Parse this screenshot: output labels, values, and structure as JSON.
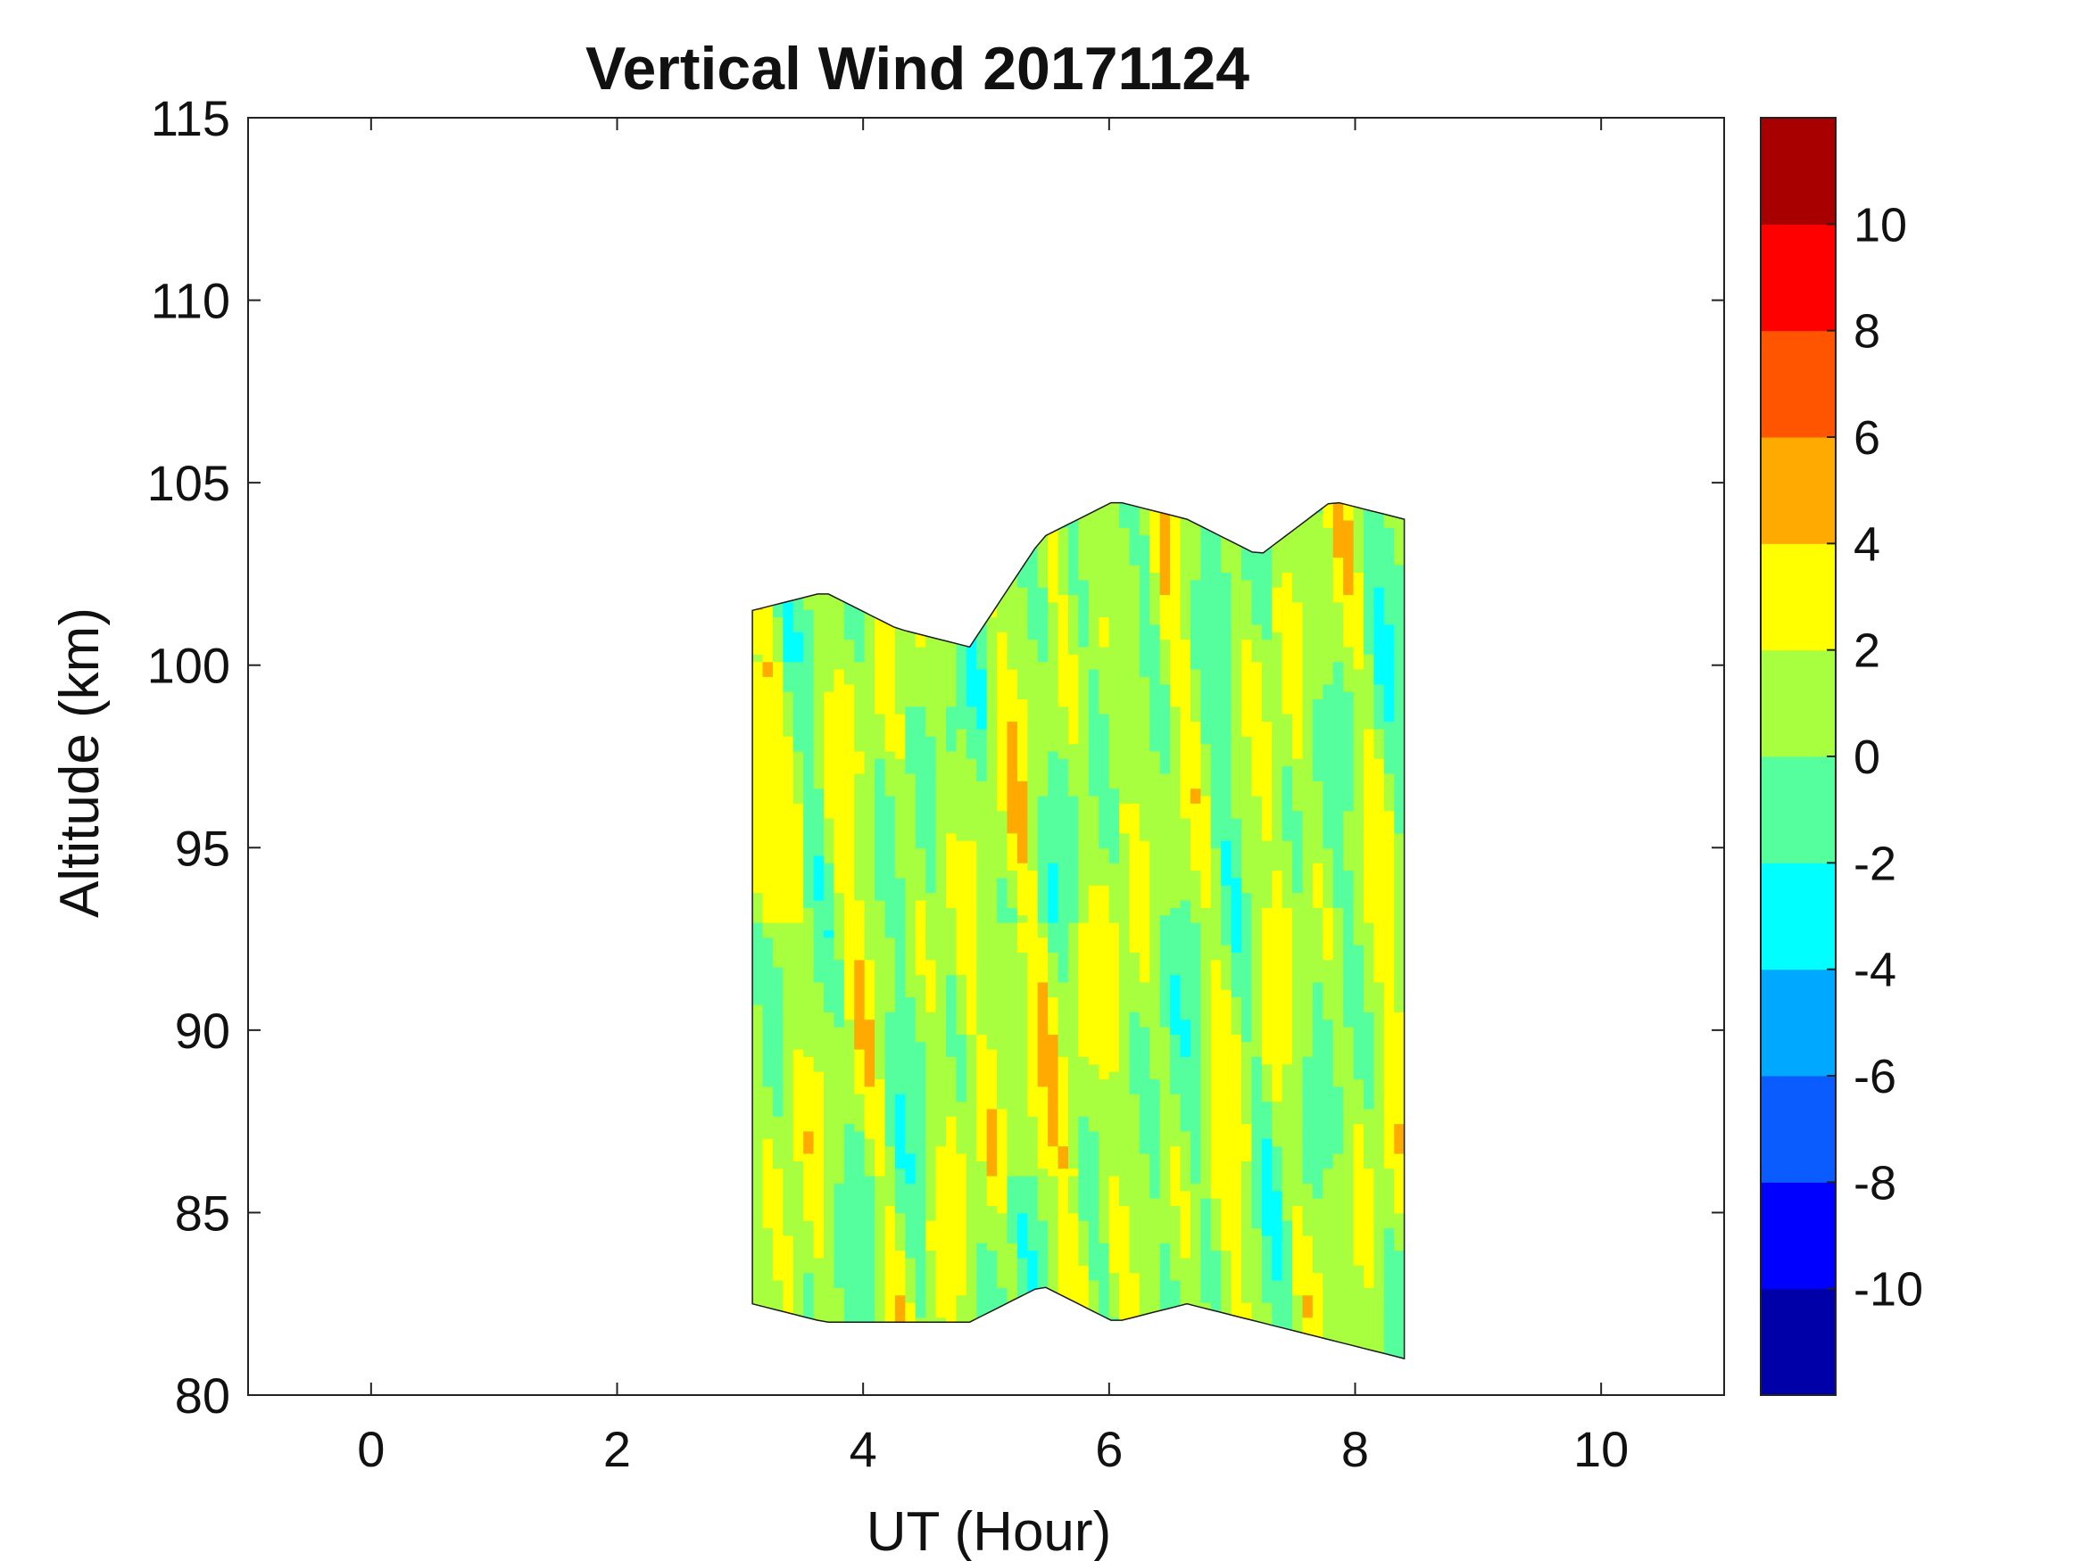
{
  "chart_data": {
    "type": "heatmap",
    "subtype": "filled-contour",
    "title": "Vertical Wind 20171124",
    "xlabel": "UT (Hour)",
    "ylabel": "Altitude (km)",
    "xlim": [
      -1,
      11
    ],
    "ylim": [
      80,
      115
    ],
    "xticks": [
      0,
      2,
      4,
      6,
      8,
      10
    ],
    "yticks": [
      80,
      85,
      90,
      95,
      100,
      105,
      110,
      115
    ],
    "grid": false,
    "data_extent": {
      "x": [
        3.1,
        8.4
      ],
      "y_bottom": [
        82.5,
        82,
        82,
        82,
        83,
        82,
        82.5,
        82,
        81.5,
        81
      ],
      "y_top": [
        101.5,
        102,
        101,
        100.5,
        103.5,
        104.5,
        104,
        103,
        104.5,
        104
      ]
    },
    "colorbar": {
      "range": [
        -12,
        12
      ],
      "ticks": [
        -10,
        -8,
        -6,
        -4,
        -2,
        0,
        2,
        4,
        6,
        8,
        10
      ],
      "levels": [
        -12,
        -10,
        -8,
        -6,
        -4,
        -2,
        0,
        2,
        4,
        6,
        8,
        10,
        12
      ],
      "colors": [
        "#0000a8",
        "#0000ff",
        "#0a5cff",
        "#00a8ff",
        "#00ffff",
        "#55ff9e",
        "#a8ff3f",
        "#ffff00",
        "#ffaa00",
        "#ff5500",
        "#ff0000",
        "#a80000"
      ]
    }
  }
}
